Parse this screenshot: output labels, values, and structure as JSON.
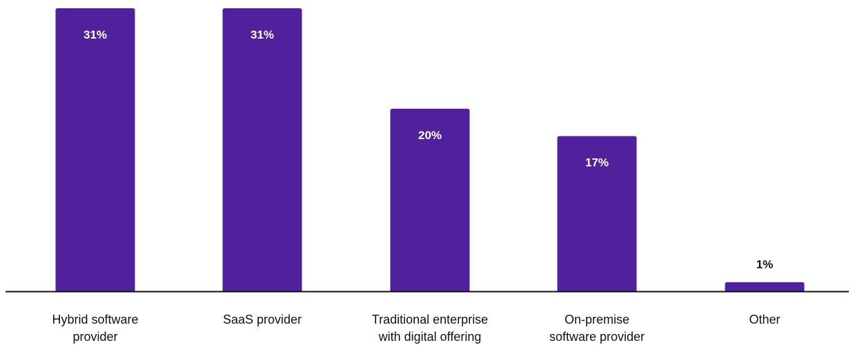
{
  "chart_data": {
    "type": "bar",
    "categories": [
      [
        "Hybrid software",
        "provider"
      ],
      [
        "SaaS provider"
      ],
      [
        "Traditional enterprise",
        "with digital offering"
      ],
      [
        "On-premise",
        "software provider"
      ],
      [
        "Other"
      ]
    ],
    "values": [
      31,
      31,
      20,
      17,
      1
    ],
    "value_labels": [
      "31%",
      "31%",
      "20%",
      "17%",
      "1%"
    ],
    "ylim": [
      0,
      31
    ],
    "grid": false,
    "legend": "none",
    "colors": {
      "bar": "#51209c",
      "label_inside": "#ffffff",
      "label_outside": "#111111",
      "axis": "#111111"
    }
  }
}
